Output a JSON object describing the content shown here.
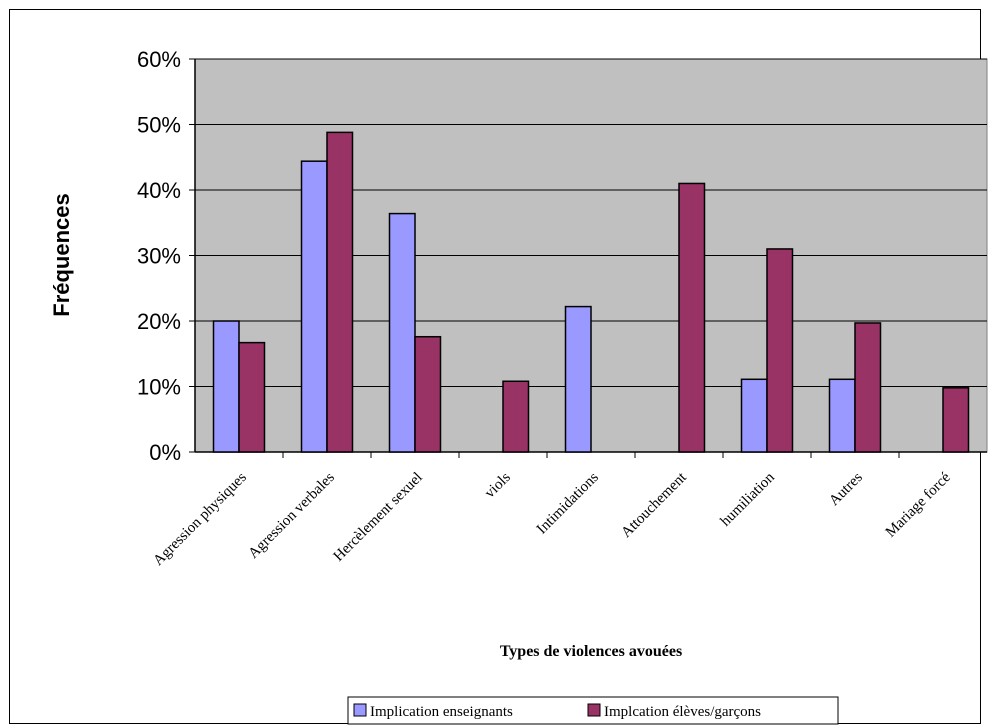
{
  "chart_data": {
    "type": "bar",
    "title": "",
    "xlabel": "Types de violences avouées",
    "ylabel": "Fréquences",
    "ylim": [
      0,
      60
    ],
    "y_ticks": [
      "0%",
      "10%",
      "20%",
      "30%",
      "40%",
      "50%",
      "60%"
    ],
    "categories": [
      "Agression physiques",
      "Agression verbales",
      "Hercèlement sexuel",
      "viols",
      "Intimidations",
      "Attouchement",
      "humiliation",
      "Autres",
      "Mariage forcé"
    ],
    "series": [
      {
        "name": "Implication enseignants",
        "color": "#9999ff",
        "values": [
          20,
          44.4,
          36.4,
          0,
          22.2,
          0,
          11.1,
          11.1,
          0
        ]
      },
      {
        "name": "Implcation élèves/garçons",
        "color": "#993366",
        "values": [
          16.7,
          48.8,
          17.6,
          10.8,
          0,
          41.0,
          31.0,
          19.7,
          9.8
        ]
      }
    ],
    "grid": true,
    "plot_background": "#c0c0c0",
    "legend_position": "bottom"
  }
}
